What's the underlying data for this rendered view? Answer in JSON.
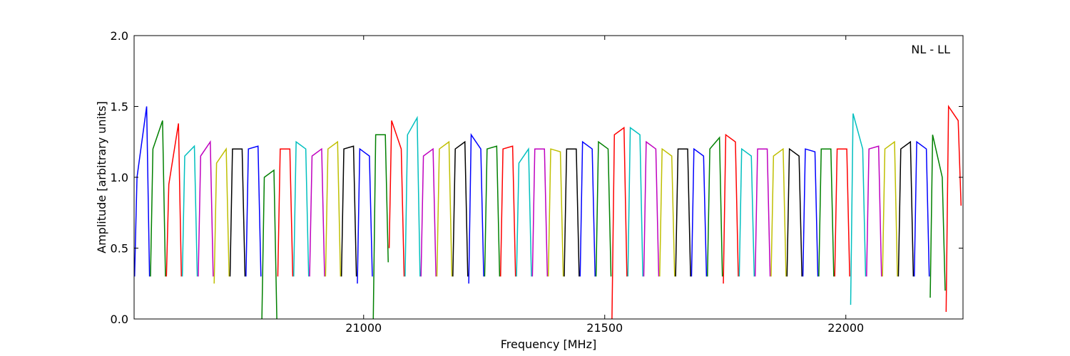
{
  "chart_data": {
    "type": "line",
    "xlabel": "Frequency [MHz]",
    "ylabel": "Amplitude [arbitrary units]",
    "annotation": "NL - LL",
    "xlim": [
      20524,
      22243
    ],
    "ylim": [
      0,
      2
    ],
    "xticks": [
      21000,
      21500,
      22000
    ],
    "yticks": [
      {
        "value": 0,
        "label": "0.0"
      },
      0.5,
      {
        "value": 1,
        "label": "1.0"
      },
      1.5,
      {
        "value": 2,
        "label": "2.0"
      }
    ],
    "series": [
      {
        "color": "#0000ff",
        "x": [
          20525,
          20530,
          20550,
          20556,
          null,
          20756,
          20761,
          20781,
          20787,
          null,
          20987,
          20992,
          21012,
          21018,
          null,
          21218,
          21223,
          21243,
          21249,
          null,
          21449,
          21454,
          21474,
          21480,
          null,
          21680,
          21685,
          21705,
          21711,
          null,
          21911,
          21916,
          21936,
          21942,
          null,
          22142,
          22147,
          22167,
          22173
        ],
        "values": [
          0.3,
          1.0,
          1.5,
          0.3,
          null,
          0.3,
          1.2,
          1.22,
          0.3,
          null,
          0.25,
          1.2,
          1.15,
          0.3,
          null,
          0.25,
          1.3,
          1.2,
          0.3,
          null,
          0.3,
          1.25,
          1.2,
          0.3,
          null,
          0.3,
          1.2,
          1.15,
          0.3,
          null,
          0.3,
          1.2,
          1.18,
          0.3,
          null,
          0.3,
          1.25,
          1.2,
          0.3
        ]
      },
      {
        "color": "#008000",
        "x": [
          20558,
          20563,
          20583,
          20589,
          null,
          20789,
          20794,
          20814,
          20820,
          null,
          21020,
          21025,
          21045,
          21051,
          null,
          21251,
          21256,
          21276,
          21282,
          null,
          21482,
          21487,
          21507,
          21513,
          null,
          21713,
          21718,
          21738,
          21744,
          null,
          21944,
          21949,
          21969,
          21975,
          null,
          22175,
          22180,
          22200,
          22206
        ],
        "values": [
          0.3,
          1.2,
          1.4,
          0.3,
          null,
          0.0,
          1.0,
          1.05,
          0.0,
          null,
          0.0,
          1.3,
          1.3,
          0.4,
          null,
          0.3,
          1.2,
          1.22,
          0.3,
          null,
          0.3,
          1.25,
          1.2,
          0.3,
          null,
          0.3,
          1.2,
          1.28,
          0.3,
          null,
          0.3,
          1.2,
          1.2,
          0.3,
          null,
          0.15,
          1.3,
          1.0,
          0.2
        ]
      },
      {
        "color": "#ff0000",
        "x": [
          20591,
          20596,
          20616,
          20622,
          null,
          20822,
          20827,
          20847,
          20853,
          null,
          21053,
          21058,
          21078,
          21084,
          null,
          21284,
          21289,
          21309,
          21315,
          null,
          21515,
          21520,
          21540,
          21546,
          null,
          21746,
          21751,
          21771,
          21777,
          null,
          21977,
          21982,
          22002,
          22008,
          null,
          22208,
          22213,
          22233,
          22239
        ],
        "values": [
          0.3,
          0.95,
          1.38,
          0.3,
          null,
          0.3,
          1.2,
          1.2,
          0.3,
          null,
          0.5,
          1.4,
          1.2,
          0.3,
          null,
          0.3,
          1.2,
          1.22,
          0.3,
          null,
          0.0,
          1.3,
          1.35,
          0.3,
          null,
          0.25,
          1.3,
          1.25,
          0.3,
          null,
          0.3,
          1.2,
          1.2,
          0.3,
          null,
          0.05,
          1.5,
          1.4,
          0.8
        ]
      },
      {
        "color": "#00bfbf",
        "x": [
          20624,
          20629,
          20649,
          20655,
          null,
          20855,
          20860,
          20880,
          20886,
          null,
          21086,
          21091,
          21111,
          21117,
          null,
          21317,
          21322,
          21342,
          21348,
          null,
          21548,
          21553,
          21573,
          21579,
          null,
          21779,
          21784,
          21804,
          21810,
          null,
          22010,
          22015,
          22035,
          22041
        ],
        "values": [
          0.3,
          1.15,
          1.22,
          0.3,
          null,
          0.3,
          1.25,
          1.2,
          0.3,
          null,
          0.3,
          1.3,
          1.42,
          0.3,
          null,
          0.3,
          1.1,
          1.2,
          0.3,
          null,
          0.3,
          1.35,
          1.3,
          0.3,
          null,
          0.3,
          1.2,
          1.15,
          0.3,
          null,
          0.1,
          1.45,
          1.2,
          0.3
        ]
      },
      {
        "color": "#bf00bf",
        "x": [
          20657,
          20662,
          20682,
          20688,
          null,
          20888,
          20893,
          20913,
          20919,
          null,
          21119,
          21124,
          21144,
          21150,
          null,
          21350,
          21355,
          21375,
          21381,
          null,
          21581,
          21586,
          21606,
          21612,
          null,
          21812,
          21817,
          21837,
          21843,
          null,
          22043,
          22048,
          22068,
          22074
        ],
        "values": [
          0.3,
          1.15,
          1.25,
          0.3,
          null,
          0.3,
          1.15,
          1.2,
          0.3,
          null,
          0.3,
          1.15,
          1.2,
          0.3,
          null,
          0.3,
          1.2,
          1.2,
          0.3,
          null,
          0.3,
          1.25,
          1.2,
          0.3,
          null,
          0.3,
          1.2,
          1.2,
          0.3,
          null,
          0.3,
          1.2,
          1.22,
          0.3
        ]
      },
      {
        "color": "#bfbf00",
        "x": [
          20690,
          20695,
          20715,
          20721,
          null,
          20921,
          20926,
          20946,
          20952,
          null,
          21152,
          21157,
          21177,
          21183,
          null,
          21383,
          21388,
          21408,
          21414,
          null,
          21614,
          21619,
          21639,
          21645,
          null,
          21845,
          21850,
          21870,
          21876,
          null,
          22076,
          22081,
          22101,
          22107
        ],
        "values": [
          0.25,
          1.1,
          1.2,
          0.3,
          null,
          0.3,
          1.2,
          1.25,
          0.3,
          null,
          0.3,
          1.2,
          1.25,
          0.3,
          null,
          0.3,
          1.2,
          1.18,
          0.3,
          null,
          0.3,
          1.2,
          1.15,
          0.3,
          null,
          0.3,
          1.15,
          1.2,
          0.3,
          null,
          0.3,
          1.2,
          1.25,
          0.3
        ]
      },
      {
        "color": "#000000",
        "x": [
          20723,
          20728,
          20748,
          20754,
          null,
          20954,
          20959,
          20979,
          20985,
          null,
          21185,
          21190,
          21210,
          21216,
          null,
          21416,
          21421,
          21441,
          21447,
          null,
          21647,
          21652,
          21672,
          21678,
          null,
          21878,
          21883,
          21903,
          21909,
          null,
          22109,
          22114,
          22134,
          22140
        ],
        "values": [
          0.3,
          1.2,
          1.2,
          0.3,
          null,
          0.3,
          1.2,
          1.22,
          0.3,
          null,
          0.3,
          1.2,
          1.25,
          0.3,
          null,
          0.3,
          1.2,
          1.2,
          0.3,
          null,
          0.3,
          1.2,
          1.2,
          0.3,
          null,
          0.3,
          1.2,
          1.15,
          0.3,
          null,
          0.3,
          1.2,
          1.25,
          0.3
        ]
      }
    ]
  }
}
